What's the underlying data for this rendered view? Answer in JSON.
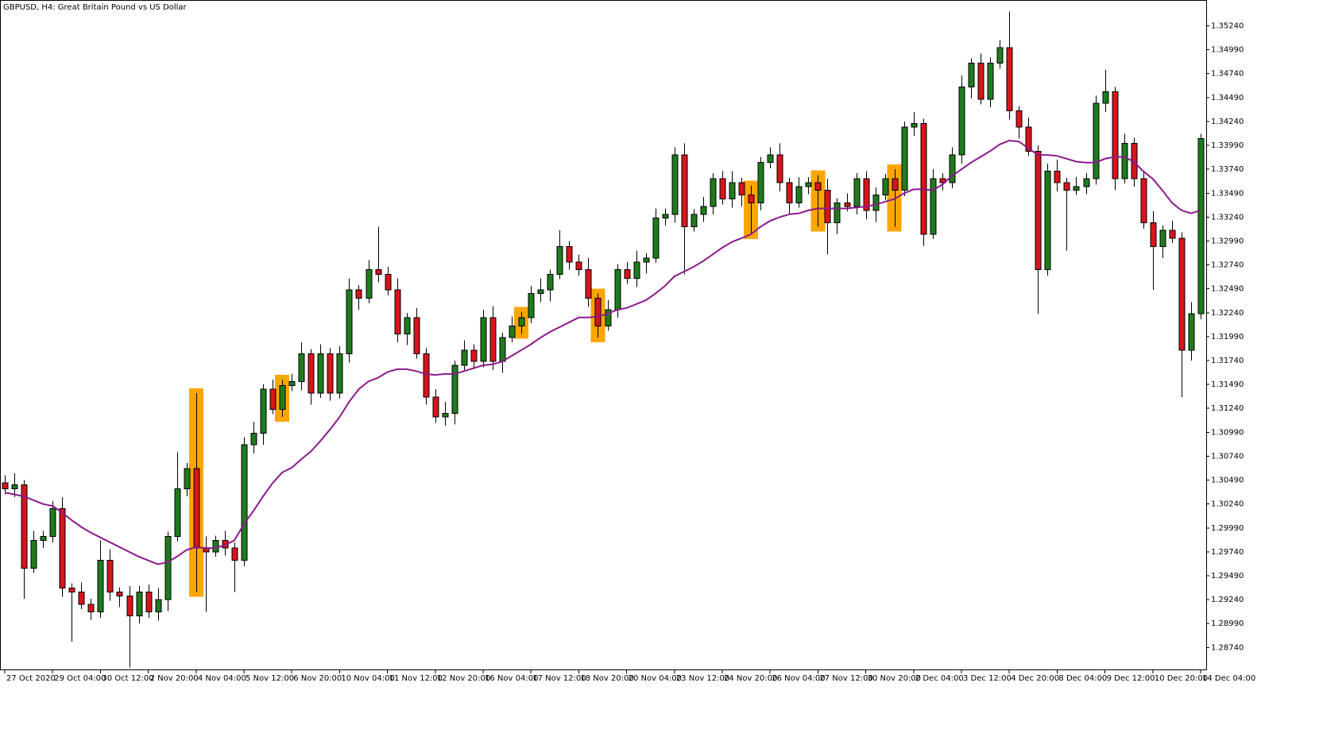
{
  "chart_data": {
    "type": "candlestick",
    "title": "GBPUSD, H4:  Great Britain Pound vs US Dollar",
    "xlim": [
      -0.5,
      125.58
    ],
    "xticks": [
      {
        "value": 0,
        "label": "27 Oct 2020"
      },
      {
        "value": 5,
        "label": "29 Oct 04:00"
      },
      {
        "value": 10,
        "label": "30 Oct 12:00"
      },
      {
        "value": 15,
        "label": "2 Nov 20:00"
      },
      {
        "value": 20,
        "label": "4 Nov 04:00"
      },
      {
        "value": 25,
        "label": "5 Nov 12:00"
      },
      {
        "value": 30,
        "label": "6 Nov 20:00"
      },
      {
        "value": 35,
        "label": "10 Nov 04:00"
      },
      {
        "value": 40,
        "label": "11 Nov 12:00"
      },
      {
        "value": 45,
        "label": "12 Nov 20:00"
      },
      {
        "value": 50,
        "label": "16 Nov 04:00"
      },
      {
        "value": 55,
        "label": "17 Nov 12:00"
      },
      {
        "value": 60,
        "label": "18 Nov 20:00"
      },
      {
        "value": 65,
        "label": "20 Nov 04:00"
      },
      {
        "value": 70,
        "label": "23 Nov 12:00"
      },
      {
        "value": 75,
        "label": "24 Nov 20:00"
      },
      {
        "value": 80,
        "label": "26 Nov 04:00"
      },
      {
        "value": 85,
        "label": "27 Nov 12:00"
      },
      {
        "value": 90,
        "label": "30 Nov 20:00"
      },
      {
        "value": 95,
        "label": "2 Dec 04:00"
      },
      {
        "value": 100,
        "label": "3 Dec 12:00"
      },
      {
        "value": 105,
        "label": "4 Dec 20:00"
      },
      {
        "value": 110,
        "label": "8 Dec 04:00"
      },
      {
        "value": 115,
        "label": "9 Dec 12:00"
      },
      {
        "value": 120,
        "label": "10 Dec 20:00"
      },
      {
        "value": 125,
        "label": "14 Dec 04:00"
      }
    ],
    "ylim": [
      1.2851,
      1.3551
    ],
    "yticks": [
      {
        "value": 1.3524,
        "label": "1.35240"
      },
      {
        "value": 1.3499,
        "label": "1.34990"
      },
      {
        "value": 1.3474,
        "label": "1.34740"
      },
      {
        "value": 1.3449,
        "label": "1.34490"
      },
      {
        "value": 1.3424,
        "label": "1.34240"
      },
      {
        "value": 1.3399,
        "label": "1.33990"
      },
      {
        "value": 1.3374,
        "label": "1.33740"
      },
      {
        "value": 1.3349,
        "label": "1.33490"
      },
      {
        "value": 1.3324,
        "label": "1.33240"
      },
      {
        "value": 1.3299,
        "label": "1.32990"
      },
      {
        "value": 1.3274,
        "label": "1.32740"
      },
      {
        "value": 1.3249,
        "label": "1.32490"
      },
      {
        "value": 1.3224,
        "label": "1.32240"
      },
      {
        "value": 1.3199,
        "label": "1.31990"
      },
      {
        "value": 1.3174,
        "label": "1.31740"
      },
      {
        "value": 1.3149,
        "label": "1.31490"
      },
      {
        "value": 1.3124,
        "label": "1.31240"
      },
      {
        "value": 1.3099,
        "label": "1.30990"
      },
      {
        "value": 1.3074,
        "label": "1.30740"
      },
      {
        "value": 1.3049,
        "label": "1.30490"
      },
      {
        "value": 1.3024,
        "label": "1.30240"
      },
      {
        "value": 1.2999,
        "label": "1.29990"
      },
      {
        "value": 1.2974,
        "label": "1.29740"
      },
      {
        "value": 1.2949,
        "label": "1.29490"
      },
      {
        "value": 1.2924,
        "label": "1.29240"
      },
      {
        "value": 1.2899,
        "label": "1.28990"
      },
      {
        "value": 1.2874,
        "label": "1.28740"
      }
    ],
    "candles": {
      "up_color": "#1e7b1e",
      "down_color": "#d8141c",
      "open": [
        1.3046,
        1.304,
        1.3044,
        1.2957,
        1.2986,
        1.299,
        1.3019,
        1.2936,
        1.2932,
        1.2919,
        1.2911,
        1.2965,
        1.2932,
        1.2928,
        1.2907,
        1.2932,
        1.2911,
        1.2924,
        1.299,
        1.304,
        1.3061,
        1.2978,
        1.2974,
        1.2986,
        1.2978,
        1.2965,
        1.3086,
        1.3098,
        1.3144,
        1.3123,
        1.3148,
        1.3152,
        1.3181,
        1.314,
        1.3181,
        1.314,
        1.3181,
        1.3248,
        1.3239,
        1.3269,
        1.3264,
        1.3248,
        1.3202,
        1.3219,
        1.3181,
        1.3136,
        1.3115,
        1.3119,
        1.3169,
        1.3185,
        1.3173,
        1.3219,
        1.3173,
        1.3198,
        1.321,
        1.3219,
        1.3244,
        1.3248,
        1.3264,
        1.3293,
        1.3277,
        1.3269,
        1.3239,
        1.321,
        1.3227,
        1.3269,
        1.326,
        1.3277,
        1.3281,
        1.3323,
        1.3327,
        1.3389,
        1.3314,
        1.3327,
        1.3335,
        1.3364,
        1.3343,
        1.336,
        1.3347,
        1.3339,
        1.3381,
        1.3389,
        1.336,
        1.3339,
        1.3356,
        1.336,
        1.3352,
        1.3318,
        1.3339,
        1.3335,
        1.3364,
        1.3331,
        1.3347,
        1.3364,
        1.3352,
        1.3418,
        1.3422,
        1.3306,
        1.3364,
        1.336,
        1.3389,
        1.346,
        1.3485,
        1.3447,
        1.3485,
        1.3501,
        1.3435,
        1.3418,
        1.3393,
        1.3269,
        1.3372,
        1.336,
        1.3352,
        1.3356,
        1.3364,
        1.3443,
        1.3455,
        1.3364,
        1.3401,
        1.3364,
        1.3318,
        1.3293,
        1.331,
        1.3302,
        1.3185,
        1.3223
      ],
      "high": [
        1.3054,
        1.3056,
        1.3049,
        1.2996,
        1.2996,
        1.3027,
        1.3031,
        1.2941,
        1.2942,
        1.2925,
        1.2986,
        1.2977,
        1.2937,
        1.2938,
        1.2938,
        1.294,
        1.2936,
        1.2995,
        1.3078,
        1.3067,
        1.314,
        1.299,
        1.2991,
        1.2996,
        1.2984,
        1.3094,
        1.311,
        1.3149,
        1.3154,
        1.3154,
        1.316,
        1.3193,
        1.3186,
        1.3191,
        1.3187,
        1.3189,
        1.326,
        1.3253,
        1.3279,
        1.3314,
        1.3272,
        1.326,
        1.3224,
        1.3229,
        1.3187,
        1.3144,
        1.3131,
        1.3174,
        1.3195,
        1.3191,
        1.3227,
        1.3231,
        1.3203,
        1.322,
        1.3225,
        1.3252,
        1.326,
        1.3269,
        1.331,
        1.3299,
        1.3285,
        1.3281,
        1.3244,
        1.3237,
        1.3275,
        1.3277,
        1.3289,
        1.3286,
        1.3333,
        1.3333,
        1.3397,
        1.3401,
        1.3332,
        1.3345,
        1.337,
        1.3372,
        1.3372,
        1.3365,
        1.3357,
        1.3387,
        1.3397,
        1.3401,
        1.3365,
        1.3366,
        1.3366,
        1.3368,
        1.3364,
        1.3344,
        1.3349,
        1.337,
        1.3372,
        1.3355,
        1.3369,
        1.3374,
        1.3424,
        1.3434,
        1.3427,
        1.3374,
        1.337,
        1.3397,
        1.3472,
        1.349,
        1.3495,
        1.3491,
        1.3509,
        1.3539,
        1.344,
        1.3428,
        1.3399,
        1.338,
        1.3384,
        1.3365,
        1.3366,
        1.337,
        1.3451,
        1.3478,
        1.346,
        1.3411,
        1.3407,
        1.3372,
        1.333,
        1.3315,
        1.332,
        1.3308,
        1.3235,
        1.3411
      ],
      "low": [
        1.3034,
        1.3031,
        1.2925,
        1.2952,
        1.2978,
        1.2984,
        1.2927,
        1.288,
        1.2914,
        1.2903,
        1.2905,
        1.2923,
        1.2916,
        1.2853,
        1.2899,
        1.2905,
        1.2902,
        1.2912,
        1.2985,
        1.3032,
        1.2932,
        1.2911,
        1.2969,
        1.297,
        1.2932,
        1.2959,
        1.3077,
        1.3086,
        1.3118,
        1.3115,
        1.3142,
        1.3143,
        1.3128,
        1.3135,
        1.3132,
        1.3134,
        1.3172,
        1.3227,
        1.3234,
        1.3256,
        1.3242,
        1.3193,
        1.319,
        1.3176,
        1.3128,
        1.3109,
        1.3106,
        1.3107,
        1.3164,
        1.3165,
        1.3167,
        1.3164,
        1.3161,
        1.3193,
        1.3202,
        1.3213,
        1.3235,
        1.3236,
        1.3259,
        1.3269,
        1.3263,
        1.323,
        1.3198,
        1.3205,
        1.3219,
        1.3254,
        1.3251,
        1.3265,
        1.3276,
        1.3315,
        1.3318,
        1.3264,
        1.3309,
        1.3319,
        1.3327,
        1.3337,
        1.3334,
        1.3335,
        1.3306,
        1.3331,
        1.3375,
        1.3351,
        1.3327,
        1.3334,
        1.3348,
        1.3314,
        1.3285,
        1.3306,
        1.333,
        1.3327,
        1.3322,
        1.3319,
        1.3342,
        1.3314,
        1.3346,
        1.3409,
        1.3294,
        1.3301,
        1.3352,
        1.3354,
        1.338,
        1.3448,
        1.3442,
        1.3439,
        1.3479,
        1.3426,
        1.3406,
        1.3388,
        1.3223,
        1.3263,
        1.3351,
        1.3289,
        1.3347,
        1.3348,
        1.3358,
        1.3434,
        1.3352,
        1.3359,
        1.3356,
        1.3312,
        1.3248,
        1.3281,
        1.3297,
        1.3136,
        1.3174,
        1.3217
      ],
      "close": [
        1.304,
        1.3044,
        1.2957,
        1.2986,
        1.299,
        1.3019,
        1.2936,
        1.2932,
        1.2919,
        1.2911,
        1.2965,
        1.2932,
        1.2928,
        1.2907,
        1.2932,
        1.2911,
        1.2924,
        1.299,
        1.304,
        1.3061,
        1.2978,
        1.2974,
        1.2986,
        1.2978,
        1.2965,
        1.3086,
        1.3098,
        1.3144,
        1.3123,
        1.3148,
        1.3152,
        1.3181,
        1.314,
        1.3181,
        1.314,
        1.3181,
        1.3248,
        1.3239,
        1.3269,
        1.3264,
        1.3248,
        1.3202,
        1.3219,
        1.3181,
        1.3136,
        1.3115,
        1.3119,
        1.3169,
        1.3185,
        1.3173,
        1.3219,
        1.3173,
        1.3198,
        1.321,
        1.3219,
        1.3244,
        1.3248,
        1.3264,
        1.3293,
        1.3277,
        1.3269,
        1.3239,
        1.321,
        1.3227,
        1.3269,
        1.326,
        1.3277,
        1.3281,
        1.3323,
        1.3327,
        1.3389,
        1.3314,
        1.3327,
        1.3335,
        1.3364,
        1.3343,
        1.336,
        1.3347,
        1.3339,
        1.3381,
        1.3389,
        1.336,
        1.3339,
        1.3356,
        1.336,
        1.3352,
        1.3318,
        1.3339,
        1.3335,
        1.3364,
        1.3331,
        1.3347,
        1.3364,
        1.3352,
        1.3418,
        1.3422,
        1.3306,
        1.3364,
        1.336,
        1.3389,
        1.346,
        1.3485,
        1.3447,
        1.3485,
        1.3501,
        1.3435,
        1.3418,
        1.3393,
        1.3269,
        1.3372,
        1.336,
        1.3352,
        1.3356,
        1.3364,
        1.3443,
        1.3455,
        1.3364,
        1.3401,
        1.3364,
        1.3318,
        1.3293,
        1.331,
        1.3302,
        1.3185,
        1.3223,
        1.3406
      ]
    },
    "ma": {
      "color": "#8b1a8b",
      "values": [
        1.3036,
        1.3034,
        1.3032,
        1.3028,
        1.3024,
        1.3022,
        1.3015,
        1.3007,
        1.3,
        1.2994,
        1.2989,
        1.2984,
        1.2979,
        1.2974,
        1.2969,
        1.2965,
        1.2961,
        1.2963,
        1.2969,
        1.2976,
        1.2979,
        1.2978,
        1.2978,
        1.2981,
        1.2986,
        1.3003,
        1.3017,
        1.3032,
        1.3046,
        1.3057,
        1.3062,
        1.3071,
        1.3079,
        1.309,
        1.3102,
        1.3115,
        1.3131,
        1.3144,
        1.3152,
        1.3156,
        1.3162,
        1.3165,
        1.3165,
        1.3163,
        1.316,
        1.3159,
        1.316,
        1.316,
        1.3163,
        1.3166,
        1.3169,
        1.317,
        1.3173,
        1.3179,
        1.3185,
        1.3191,
        1.3198,
        1.3204,
        1.3209,
        1.3214,
        1.3219,
        1.3219,
        1.322,
        1.3223,
        1.3227,
        1.3229,
        1.3233,
        1.3237,
        1.3244,
        1.3252,
        1.3262,
        1.3267,
        1.3272,
        1.3278,
        1.3285,
        1.3292,
        1.3298,
        1.3302,
        1.3306,
        1.3314,
        1.332,
        1.3324,
        1.3327,
        1.3328,
        1.3331,
        1.3333,
        1.3333,
        1.3333,
        1.3333,
        1.3334,
        1.3335,
        1.3337,
        1.334,
        1.3343,
        1.3349,
        1.3353,
        1.3353,
        1.3352,
        1.3358,
        1.3367,
        1.3374,
        1.3381,
        1.3387,
        1.3393,
        1.34,
        1.3404,
        1.3403,
        1.3396,
        1.3389,
        1.3389,
        1.3388,
        1.3385,
        1.3382,
        1.3381,
        1.3381,
        1.3385,
        1.3387,
        1.3387,
        1.3382,
        1.3372,
        1.3364,
        1.3352,
        1.3339,
        1.3331,
        1.3328,
        1.3331
      ]
    },
    "highlight": {
      "color": "#ffa500",
      "at": [
        20,
        29,
        54,
        62,
        78,
        85,
        93
      ]
    }
  }
}
